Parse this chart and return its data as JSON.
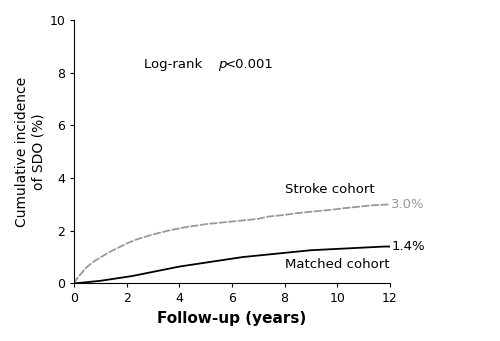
{
  "xlabel": "Follow-up (years)",
  "ylabel": "Cumulative incidence\nof SDO (%)",
  "xlim": [
    0,
    12
  ],
  "ylim": [
    0,
    10
  ],
  "xticks": [
    0,
    2,
    4,
    6,
    8,
    10,
    12
  ],
  "yticks": [
    0,
    2,
    4,
    6,
    8,
    10
  ],
  "stroke_label": "Stroke cohort",
  "stroke_value_label": "3.0%",
  "matched_label": "Matched cohort",
  "matched_value_label": "1.4%",
  "stroke_color": "#999999",
  "matched_color": "#000000",
  "background_color": "#ffffff",
  "stroke_x": [
    0,
    0.05,
    0.1,
    0.2,
    0.3,
    0.4,
    0.5,
    0.6,
    0.7,
    0.8,
    0.9,
    1.0,
    1.1,
    1.2,
    1.4,
    1.6,
    1.8,
    2.0,
    2.2,
    2.4,
    2.6,
    2.8,
    3.0,
    3.2,
    3.4,
    3.6,
    3.8,
    4.0,
    4.2,
    4.4,
    4.6,
    4.8,
    5.0,
    5.2,
    5.4,
    5.6,
    5.8,
    6.0,
    6.2,
    6.4,
    6.6,
    6.8,
    7.0,
    7.2,
    7.4,
    7.6,
    7.8,
    8.0,
    8.2,
    8.4,
    8.6,
    8.8,
    9.0,
    9.2,
    9.4,
    9.6,
    9.8,
    10.0,
    10.2,
    10.4,
    10.6,
    10.8,
    11.0,
    11.2,
    11.4,
    11.6,
    11.8,
    12.0
  ],
  "stroke_y": [
    0,
    0.1,
    0.18,
    0.3,
    0.42,
    0.54,
    0.64,
    0.72,
    0.8,
    0.87,
    0.93,
    0.99,
    1.05,
    1.11,
    1.22,
    1.32,
    1.42,
    1.52,
    1.6,
    1.68,
    1.74,
    1.8,
    1.86,
    1.91,
    1.96,
    2.01,
    2.05,
    2.09,
    2.13,
    2.16,
    2.19,
    2.22,
    2.25,
    2.27,
    2.29,
    2.31,
    2.33,
    2.35,
    2.37,
    2.39,
    2.41,
    2.43,
    2.45,
    2.5,
    2.54,
    2.56,
    2.58,
    2.6,
    2.63,
    2.66,
    2.68,
    2.7,
    2.72,
    2.74,
    2.76,
    2.78,
    2.8,
    2.82,
    2.85,
    2.87,
    2.89,
    2.91,
    2.93,
    2.95,
    2.97,
    2.98,
    2.99,
    3.0
  ],
  "matched_x": [
    0,
    0.1,
    0.2,
    0.4,
    0.6,
    0.8,
    1.0,
    1.2,
    1.4,
    1.6,
    1.8,
    2.0,
    2.2,
    2.4,
    2.6,
    2.8,
    3.0,
    3.2,
    3.4,
    3.6,
    3.8,
    4.0,
    4.2,
    4.4,
    4.6,
    4.8,
    5.0,
    5.2,
    5.4,
    5.6,
    5.8,
    6.0,
    6.2,
    6.4,
    6.6,
    6.8,
    7.0,
    7.2,
    7.4,
    7.6,
    7.8,
    8.0,
    8.2,
    8.4,
    8.6,
    8.8,
    9.0,
    9.2,
    9.4,
    9.6,
    9.8,
    10.0,
    10.2,
    10.4,
    10.6,
    10.8,
    11.0,
    11.2,
    11.4,
    11.6,
    11.8,
    12.0
  ],
  "matched_y": [
    0,
    0.01,
    0.02,
    0.04,
    0.06,
    0.08,
    0.1,
    0.13,
    0.16,
    0.19,
    0.22,
    0.25,
    0.28,
    0.32,
    0.36,
    0.4,
    0.44,
    0.48,
    0.52,
    0.56,
    0.6,
    0.64,
    0.67,
    0.7,
    0.73,
    0.76,
    0.79,
    0.82,
    0.85,
    0.88,
    0.91,
    0.94,
    0.97,
    1.0,
    1.02,
    1.04,
    1.06,
    1.08,
    1.1,
    1.12,
    1.14,
    1.16,
    1.18,
    1.2,
    1.22,
    1.24,
    1.26,
    1.27,
    1.28,
    1.29,
    1.3,
    1.31,
    1.32,
    1.33,
    1.34,
    1.35,
    1.36,
    1.37,
    1.38,
    1.39,
    1.4,
    1.4
  ],
  "xlabel_fontsize": 11,
  "ylabel_fontsize": 10,
  "tick_fontsize": 9,
  "annotation_fontsize": 9.5,
  "label_fontsize": 9.5
}
